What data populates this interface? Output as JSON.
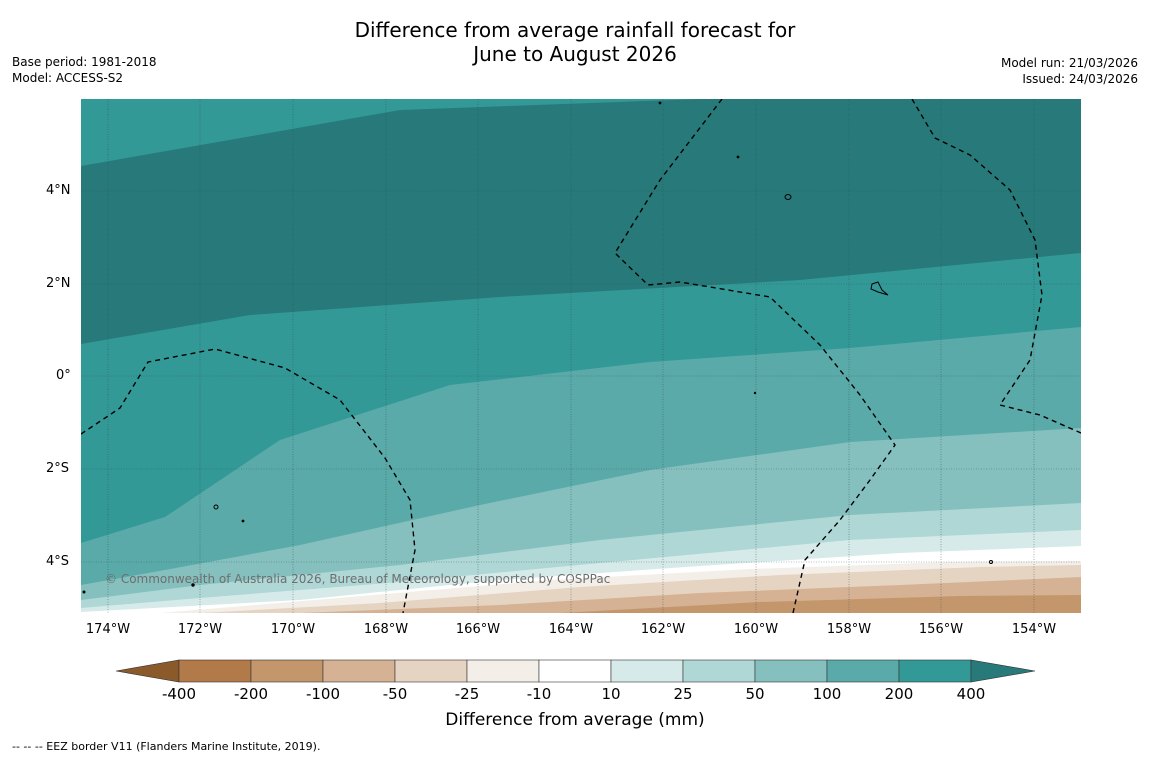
{
  "title": {
    "line1": "Difference from average rainfall forecast for",
    "line2": "June to August 2026"
  },
  "meta_left": {
    "base_period": "Base period: 1981-2018",
    "model": "Model: ACCESS-S2"
  },
  "meta_right": {
    "model_run": "Model run: 21/03/2026",
    "issued": "Issued: 24/03/2026"
  },
  "latitude_labels": [
    "4°N",
    "2°N",
    "0°",
    "2°S",
    "4°S"
  ],
  "longitude_labels": [
    "174°W",
    "172°W",
    "170°W",
    "168°W",
    "166°W",
    "164°W",
    "162°W",
    "160°W",
    "158°W",
    "156°W",
    "154°W"
  ],
  "copyright": "© Commonwealth of Australia 2026, Bureau of Meteorology, supported by COSPPac",
  "colorbar": {
    "title": "Difference from average (mm)",
    "ticks": [
      "-400",
      "-200",
      "-100",
      "-50",
      "-25",
      "-10",
      "10",
      "25",
      "50",
      "100",
      "200",
      "400"
    ],
    "colors": [
      "#8a5a2b",
      "#b27a48",
      "#c4966c",
      "#d5b294",
      "#e6d4c2",
      "#f3efe8",
      "#ffffff",
      "#d6ebe9",
      "#aed7d6",
      "#85c0bf",
      "#5aaaa9",
      "#339997",
      "#277a79"
    ]
  },
  "footnote": "--  --  -- EEZ border V11 (Flanders Marine Institute, 2019)."
}
